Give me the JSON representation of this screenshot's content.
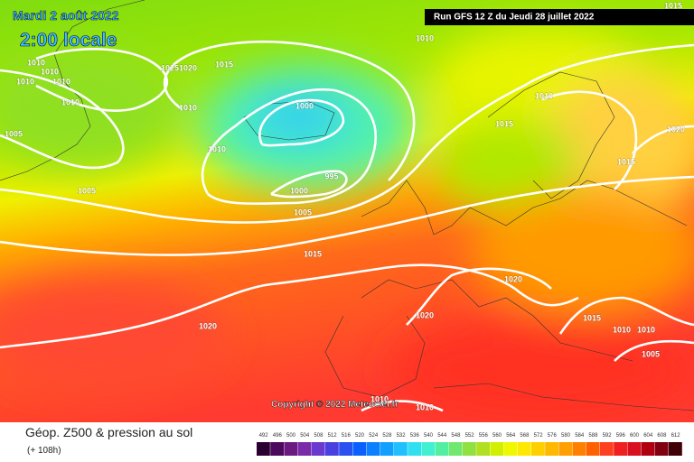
{
  "header": {
    "date": "Mardi 2 août 2022",
    "time": "2:00 locale",
    "run": "Run GFS 12 Z du Jeudi 28 juillet 2022"
  },
  "isobar_labels": [
    "1015",
    "1010",
    "1010",
    "1025",
    "1020",
    "1015",
    "1010",
    "1010",
    "1010",
    "1010",
    "1000",
    "1010",
    "1010",
    "1015",
    "1020",
    "1005",
    "1010",
    "1015",
    "995",
    "1005",
    "1000",
    "1005",
    "1015",
    "1020",
    "1020",
    "1015",
    "1010",
    "1010",
    "1020",
    "1005",
    "1010",
    "1010"
  ],
  "copyright": "Copyright © 2022 Meteociel.fr",
  "footer": {
    "title": "Géop. Z500 & pression au sol",
    "lead": "(+ 108h)"
  },
  "legend": {
    "scale": [
      492,
      496,
      500,
      504,
      508,
      512,
      516,
      520,
      524,
      528,
      532,
      536,
      540,
      544,
      548,
      552,
      556,
      560,
      564,
      568,
      572,
      576,
      580,
      584,
      588,
      592,
      596,
      600,
      604,
      608,
      612
    ],
    "colors": [
      "#2a0030",
      "#4b0a5c",
      "#6a1a80",
      "#7a2aa8",
      "#6a3ad0",
      "#4a40e0",
      "#2a50f0",
      "#0a60ff",
      "#0a80ff",
      "#10a0ff",
      "#20c0ff",
      "#30e0f0",
      "#40f0d0",
      "#50f0a0",
      "#70e870",
      "#90e040",
      "#b0e020",
      "#d0f000",
      "#f0f800",
      "#ffe800",
      "#ffd000",
      "#ffb800",
      "#ffa000",
      "#ff8000",
      "#ff6000",
      "#ff4020",
      "#f02020",
      "#d81020",
      "#b00010",
      "#800010",
      "#400008"
    ]
  }
}
